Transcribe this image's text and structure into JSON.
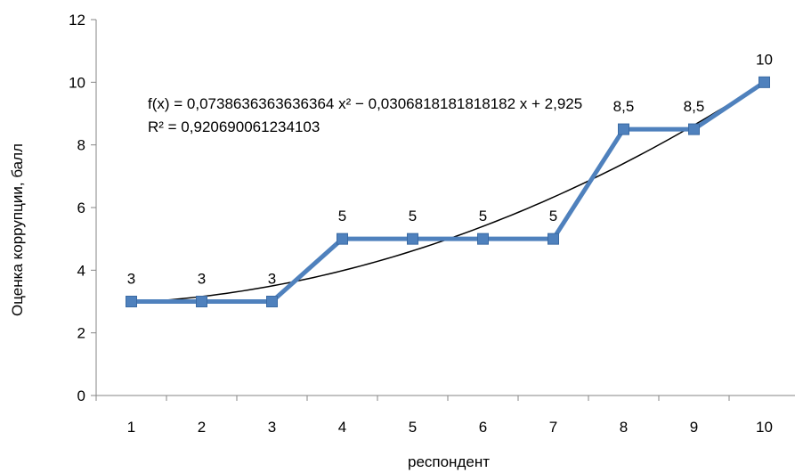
{
  "chart_data": {
    "type": "line",
    "x": [
      1,
      2,
      3,
      4,
      5,
      6,
      7,
      8,
      9,
      10
    ],
    "series": [
      {
        "values": [
          3,
          3,
          3,
          5,
          5,
          5,
          5,
          8.5,
          8.5,
          10
        ],
        "labels": [
          "3",
          "3",
          "3",
          "5",
          "5",
          "5",
          "5",
          "8,5",
          "8,5",
          "10"
        ],
        "color": "#4F81BD",
        "marker": "square"
      }
    ],
    "trendline": {
      "type": "polynomial",
      "order": 2,
      "coefficients": {
        "a": 0.0738636363636364,
        "b": -0.0306818181818182,
        "c": 2.925
      },
      "equation_text": "f(x) = 0,0738636363636364 x² − 0,0306818181818182 x + 2,925",
      "r2_text": "R² = 0,920690061234103",
      "color": "#000000"
    },
    "xlabel": "респондент",
    "ylabel": "Оценка коррупции, балл",
    "x_tick_labels": [
      "1",
      "2",
      "3",
      "4",
      "5",
      "6",
      "7",
      "8",
      "9",
      "10"
    ],
    "y_tick_labels": [
      "0",
      "2",
      "4",
      "6",
      "8",
      "10",
      "12"
    ],
    "ylim": [
      0,
      12
    ],
    "ytick_step": 2,
    "grid": {
      "horizontal": false,
      "vertical": false
    }
  }
}
